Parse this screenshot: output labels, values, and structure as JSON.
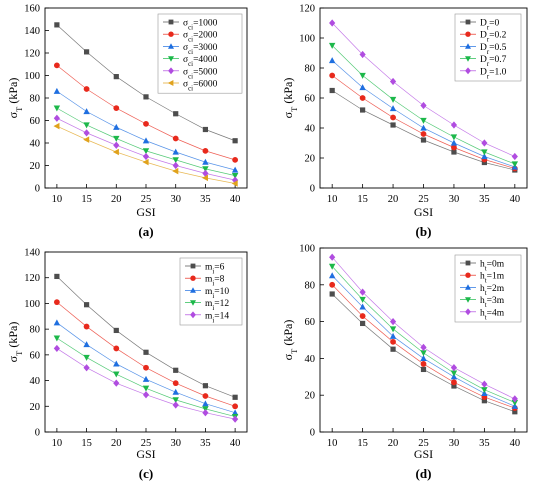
{
  "chart_data": [
    {
      "panel_label": "(a)",
      "type": "scatter",
      "xlabel": "GSI",
      "ylabel": "σ",
      "ylabel_sub": "T",
      "ylabel_unit": " (kPa)",
      "x": [
        10,
        15,
        20,
        25,
        30,
        35,
        40
      ],
      "xlim": [
        8,
        42
      ],
      "ylim": [
        0,
        160
      ],
      "xticks": [
        10,
        15,
        20,
        25,
        30,
        35,
        40
      ],
      "yticks": [
        0,
        20,
        40,
        60,
        80,
        100,
        120,
        140,
        160
      ],
      "legend_position": "top-right",
      "series": [
        {
          "name": "σci=1000",
          "label_main": "σ",
          "label_sub": "ci",
          "label_tail": "=1000",
          "values": [
            145,
            121,
            99,
            81,
            66,
            52,
            42
          ]
        },
        {
          "name": "σci=2000",
          "label_main": "σ",
          "label_sub": "ci",
          "label_tail": "=2000",
          "values": [
            109,
            88,
            71,
            57,
            44,
            33,
            25
          ]
        },
        {
          "name": "σci=3000",
          "label_main": "σ",
          "label_sub": "ci",
          "label_tail": "=3000",
          "values": [
            86,
            68,
            54,
            42,
            32,
            23,
            16
          ]
        },
        {
          "name": "σci=4000",
          "label_main": "σ",
          "label_sub": "ci",
          "label_tail": "=4000",
          "values": [
            71,
            56,
            44,
            33,
            25,
            17,
            11
          ]
        },
        {
          "name": "σci=5000",
          "label_main": "σ",
          "label_sub": "ci",
          "label_tail": "=5000",
          "values": [
            62,
            49,
            38,
            28,
            20,
            13,
            7
          ]
        },
        {
          "name": "σci=6000",
          "label_main": "σ",
          "label_sub": "ci",
          "label_tail": "=6000",
          "values": [
            55,
            43,
            32,
            23,
            15,
            9,
            4
          ]
        }
      ]
    },
    {
      "panel_label": "(b)",
      "type": "scatter",
      "xlabel": "GSI",
      "ylabel": "σ",
      "ylabel_sub": "T",
      "ylabel_unit": " (kPa)",
      "x": [
        10,
        15,
        20,
        25,
        30,
        35,
        40
      ],
      "xlim": [
        8,
        42
      ],
      "ylim": [
        0,
        120
      ],
      "xticks": [
        10,
        15,
        20,
        25,
        30,
        35,
        40
      ],
      "yticks": [
        0,
        20,
        40,
        60,
        80,
        100,
        120
      ],
      "legend_position": "top-right",
      "series": [
        {
          "name": "Dr=0",
          "label_main": "D",
          "label_sub": "r",
          "label_tail": "=0",
          "values": [
            65,
            52,
            42,
            32,
            24,
            17,
            12
          ]
        },
        {
          "name": "Dr=0.2",
          "label_main": "D",
          "label_sub": "r",
          "label_tail": "=0.2",
          "values": [
            75,
            60,
            47,
            36,
            27,
            19,
            13
          ]
        },
        {
          "name": "Dr=0.5",
          "label_main": "D",
          "label_sub": "r",
          "label_tail": "=0.5",
          "values": [
            85,
            67,
            53,
            40,
            30,
            21,
            14
          ]
        },
        {
          "name": "Dr=0.7",
          "label_main": "D",
          "label_sub": "r",
          "label_tail": "=0.7",
          "values": [
            95,
            75,
            59,
            45,
            34,
            24,
            16
          ]
        },
        {
          "name": "Dr=1.0",
          "label_main": "D",
          "label_sub": "r",
          "label_tail": "=1.0",
          "values": [
            110,
            89,
            71,
            55,
            42,
            30,
            21
          ]
        }
      ]
    },
    {
      "panel_label": "(c)",
      "type": "scatter",
      "xlabel": "GSI",
      "ylabel": "σ",
      "ylabel_sub": "T",
      "ylabel_unit": " (kPa)",
      "x": [
        10,
        15,
        20,
        25,
        30,
        35,
        40
      ],
      "xlim": [
        8,
        42
      ],
      "ylim": [
        0,
        140
      ],
      "xticks": [
        10,
        15,
        20,
        25,
        30,
        35,
        40
      ],
      "yticks": [
        0,
        20,
        40,
        60,
        80,
        100,
        120,
        140
      ],
      "legend_position": "top-right",
      "series": [
        {
          "name": "mi=6",
          "label_main": "m",
          "label_sub": "i",
          "label_tail": "=6",
          "values": [
            121,
            99,
            79,
            62,
            48,
            36,
            27
          ]
        },
        {
          "name": "mi=8",
          "label_main": "m",
          "label_sub": "i",
          "label_tail": "=8",
          "values": [
            101,
            82,
            65,
            50,
            38,
            28,
            20
          ]
        },
        {
          "name": "mi=10",
          "label_main": "m",
          "label_sub": "i",
          "label_tail": "=10",
          "values": [
            85,
            68,
            53,
            41,
            31,
            22,
            15
          ]
        },
        {
          "name": "mi=12",
          "label_main": "m",
          "label_sub": "i",
          "label_tail": "=12",
          "values": [
            73,
            58,
            45,
            34,
            25,
            18,
            12
          ]
        },
        {
          "name": "mi=14",
          "label_main": "m",
          "label_sub": "i",
          "label_tail": "=14",
          "values": [
            65,
            50,
            38,
            29,
            21,
            15,
            10
          ]
        }
      ]
    },
    {
      "panel_label": "(d)",
      "type": "scatter",
      "xlabel": "GSI",
      "ylabel": "σ",
      "ylabel_sub": "T",
      "ylabel_unit": " (kPa)",
      "x": [
        10,
        15,
        20,
        25,
        30,
        35,
        40
      ],
      "xlim": [
        8,
        42
      ],
      "ylim": [
        0,
        100
      ],
      "xticks": [
        10,
        15,
        20,
        25,
        30,
        35,
        40
      ],
      "yticks": [
        0,
        20,
        40,
        60,
        80,
        100
      ],
      "legend_position": "top-right",
      "series": [
        {
          "name": "ht=0m",
          "label_main": "h",
          "label_sub": "t",
          "label_tail": "=0m",
          "values": [
            75,
            59,
            45,
            34,
            25,
            17,
            11
          ]
        },
        {
          "name": "ht=1m",
          "label_main": "h",
          "label_sub": "t",
          "label_tail": "=1m",
          "values": [
            80,
            63,
            49,
            37,
            27,
            19,
            13
          ]
        },
        {
          "name": "ht=2m",
          "label_main": "h",
          "label_sub": "t",
          "label_tail": "=2m",
          "values": [
            85,
            68,
            52,
            40,
            30,
            21,
            14
          ]
        },
        {
          "name": "ht=3m",
          "label_main": "h",
          "label_sub": "t",
          "label_tail": "=3m",
          "values": [
            90,
            72,
            56,
            43,
            32,
            23,
            16
          ]
        },
        {
          "name": "ht=4m",
          "label_main": "h",
          "label_sub": "t",
          "label_tail": "=4m",
          "values": [
            95,
            76,
            60,
            46,
            35,
            26,
            18
          ]
        }
      ]
    }
  ],
  "series_styles": [
    {
      "color": "#4d4d4d",
      "marker": "square"
    },
    {
      "color": "#e8291c",
      "marker": "circle"
    },
    {
      "color": "#1f6fe0",
      "marker": "triangle-up"
    },
    {
      "color": "#1cb84a",
      "marker": "triangle-down"
    },
    {
      "color": "#b04ce0",
      "marker": "diamond"
    },
    {
      "color": "#e0a21c",
      "marker": "triangle-left"
    }
  ]
}
